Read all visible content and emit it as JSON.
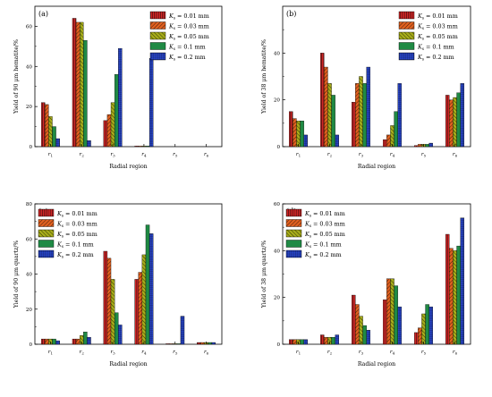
{
  "figure": {
    "legend_items": [
      {
        "symbol": "K",
        "subscript": "s",
        "value": " = 0.01 mm",
        "color": "#d62828",
        "pattern": "vlines"
      },
      {
        "symbol": "K",
        "subscript": "s",
        "value": " = 0.03 mm",
        "color": "#e0601f",
        "pattern": "diag-right"
      },
      {
        "symbol": "K",
        "subscript": "s",
        "value": " = 0.05 mm",
        "color": "#a7ad1a",
        "pattern": "diag-left"
      },
      {
        "symbol": "K",
        "subscript": "s",
        "value": " = 0.1 mm",
        "color": "#1f8a44",
        "pattern": "solid"
      },
      {
        "symbol": "K",
        "subscript": "s",
        "value": " = 0.2 mm",
        "color": "#2845c8",
        "pattern": "grid"
      }
    ]
  },
  "chart_data": [
    {
      "type": "bar",
      "panel": "(a)",
      "xlabel": "Radial region",
      "ylabel": "Yield of 90 μm hematite/%",
      "categories": [
        "r1",
        "r2",
        "r3",
        "r4",
        "r5",
        "r6"
      ],
      "ylim": [
        0,
        70
      ],
      "yticks": [
        0,
        20,
        40,
        60
      ],
      "legend": "top-right",
      "series": [
        {
          "name": "Ks = 0.01 mm",
          "values": [
            22,
            64,
            13,
            0.3,
            0,
            0
          ]
        },
        {
          "name": "Ks = 0.03 mm",
          "values": [
            21,
            62,
            16,
            0.3,
            0,
            0
          ]
        },
        {
          "name": "Ks = 0.05 mm",
          "values": [
            15,
            62,
            22,
            0.3,
            0,
            0
          ]
        },
        {
          "name": "Ks = 0.1 mm",
          "values": [
            10,
            53,
            36,
            0.3,
            0,
            0
          ]
        },
        {
          "name": "Ks = 0.2 mm",
          "values": [
            4,
            3,
            49,
            44,
            0,
            0
          ]
        }
      ]
    },
    {
      "type": "bar",
      "panel": "(b)",
      "xlabel": "Radial region",
      "ylabel": "Yield of 38 μm hematite/%",
      "categories": [
        "r1",
        "r2",
        "r3",
        "r4",
        "r5",
        "r6"
      ],
      "ylim": [
        0,
        60
      ],
      "yticks": [
        0,
        20,
        40
      ],
      "legend": "top-right",
      "series": [
        {
          "name": "Ks = 0.01 mm",
          "values": [
            15,
            40,
            19,
            3,
            0.5,
            22
          ]
        },
        {
          "name": "Ks = 0.03 mm",
          "values": [
            12,
            34,
            27,
            5,
            1,
            20
          ]
        },
        {
          "name": "Ks = 0.05 mm",
          "values": [
            11,
            27,
            30,
            9,
            1,
            21
          ]
        },
        {
          "name": "Ks = 0.1 mm",
          "values": [
            11,
            22,
            27,
            15,
            1,
            23
          ]
        },
        {
          "name": "Ks = 0.2 mm",
          "values": [
            5,
            5,
            34,
            27,
            1.5,
            27
          ]
        }
      ]
    },
    {
      "type": "bar",
      "panel": "(c)",
      "xlabel": "Radial region",
      "ylabel": "Yield of 90 μm quartz/%",
      "categories": [
        "r1",
        "r2",
        "r3",
        "r4",
        "r5",
        "r6"
      ],
      "ylim": [
        0,
        80
      ],
      "yticks": [
        0,
        20,
        40,
        60,
        80
      ],
      "legend": "top-left",
      "series": [
        {
          "name": "Ks = 0.01 mm",
          "values": [
            3,
            3,
            53,
            37,
            0.3,
            1
          ]
        },
        {
          "name": "Ks = 0.03 mm",
          "values": [
            3,
            3,
            49,
            41,
            0.3,
            1
          ]
        },
        {
          "name": "Ks = 0.05 mm",
          "values": [
            3,
            5,
            37,
            51,
            0.3,
            1
          ]
        },
        {
          "name": "Ks = 0.1 mm",
          "values": [
            3,
            7,
            18,
            68,
            0.3,
            1
          ]
        },
        {
          "name": "Ks = 0.2 mm",
          "values": [
            2,
            4,
            11,
            63,
            16,
            1
          ]
        }
      ]
    },
    {
      "type": "bar",
      "panel": "(d)",
      "xlabel": "Radial region",
      "ylabel": "Yield of 38 μm quartz/%",
      "categories": [
        "r1",
        "r2",
        "r3",
        "r4",
        "r5",
        "r6"
      ],
      "ylim": [
        0,
        60
      ],
      "yticks": [
        0,
        20,
        40,
        60
      ],
      "legend": "top-left",
      "series": [
        {
          "name": "Ks = 0.01 mm",
          "values": [
            2,
            4,
            21,
            19,
            5,
            47
          ]
        },
        {
          "name": "Ks = 0.03 mm",
          "values": [
            2,
            3,
            17,
            28,
            7,
            41
          ]
        },
        {
          "name": "Ks = 0.05 mm",
          "values": [
            2,
            3,
            12,
            28,
            13,
            40
          ]
        },
        {
          "name": "Ks = 0.1 mm",
          "values": [
            2,
            3,
            8,
            25,
            17,
            42
          ]
        },
        {
          "name": "Ks = 0.2 mm",
          "values": [
            2,
            4,
            6,
            16,
            16,
            54
          ]
        }
      ]
    }
  ]
}
